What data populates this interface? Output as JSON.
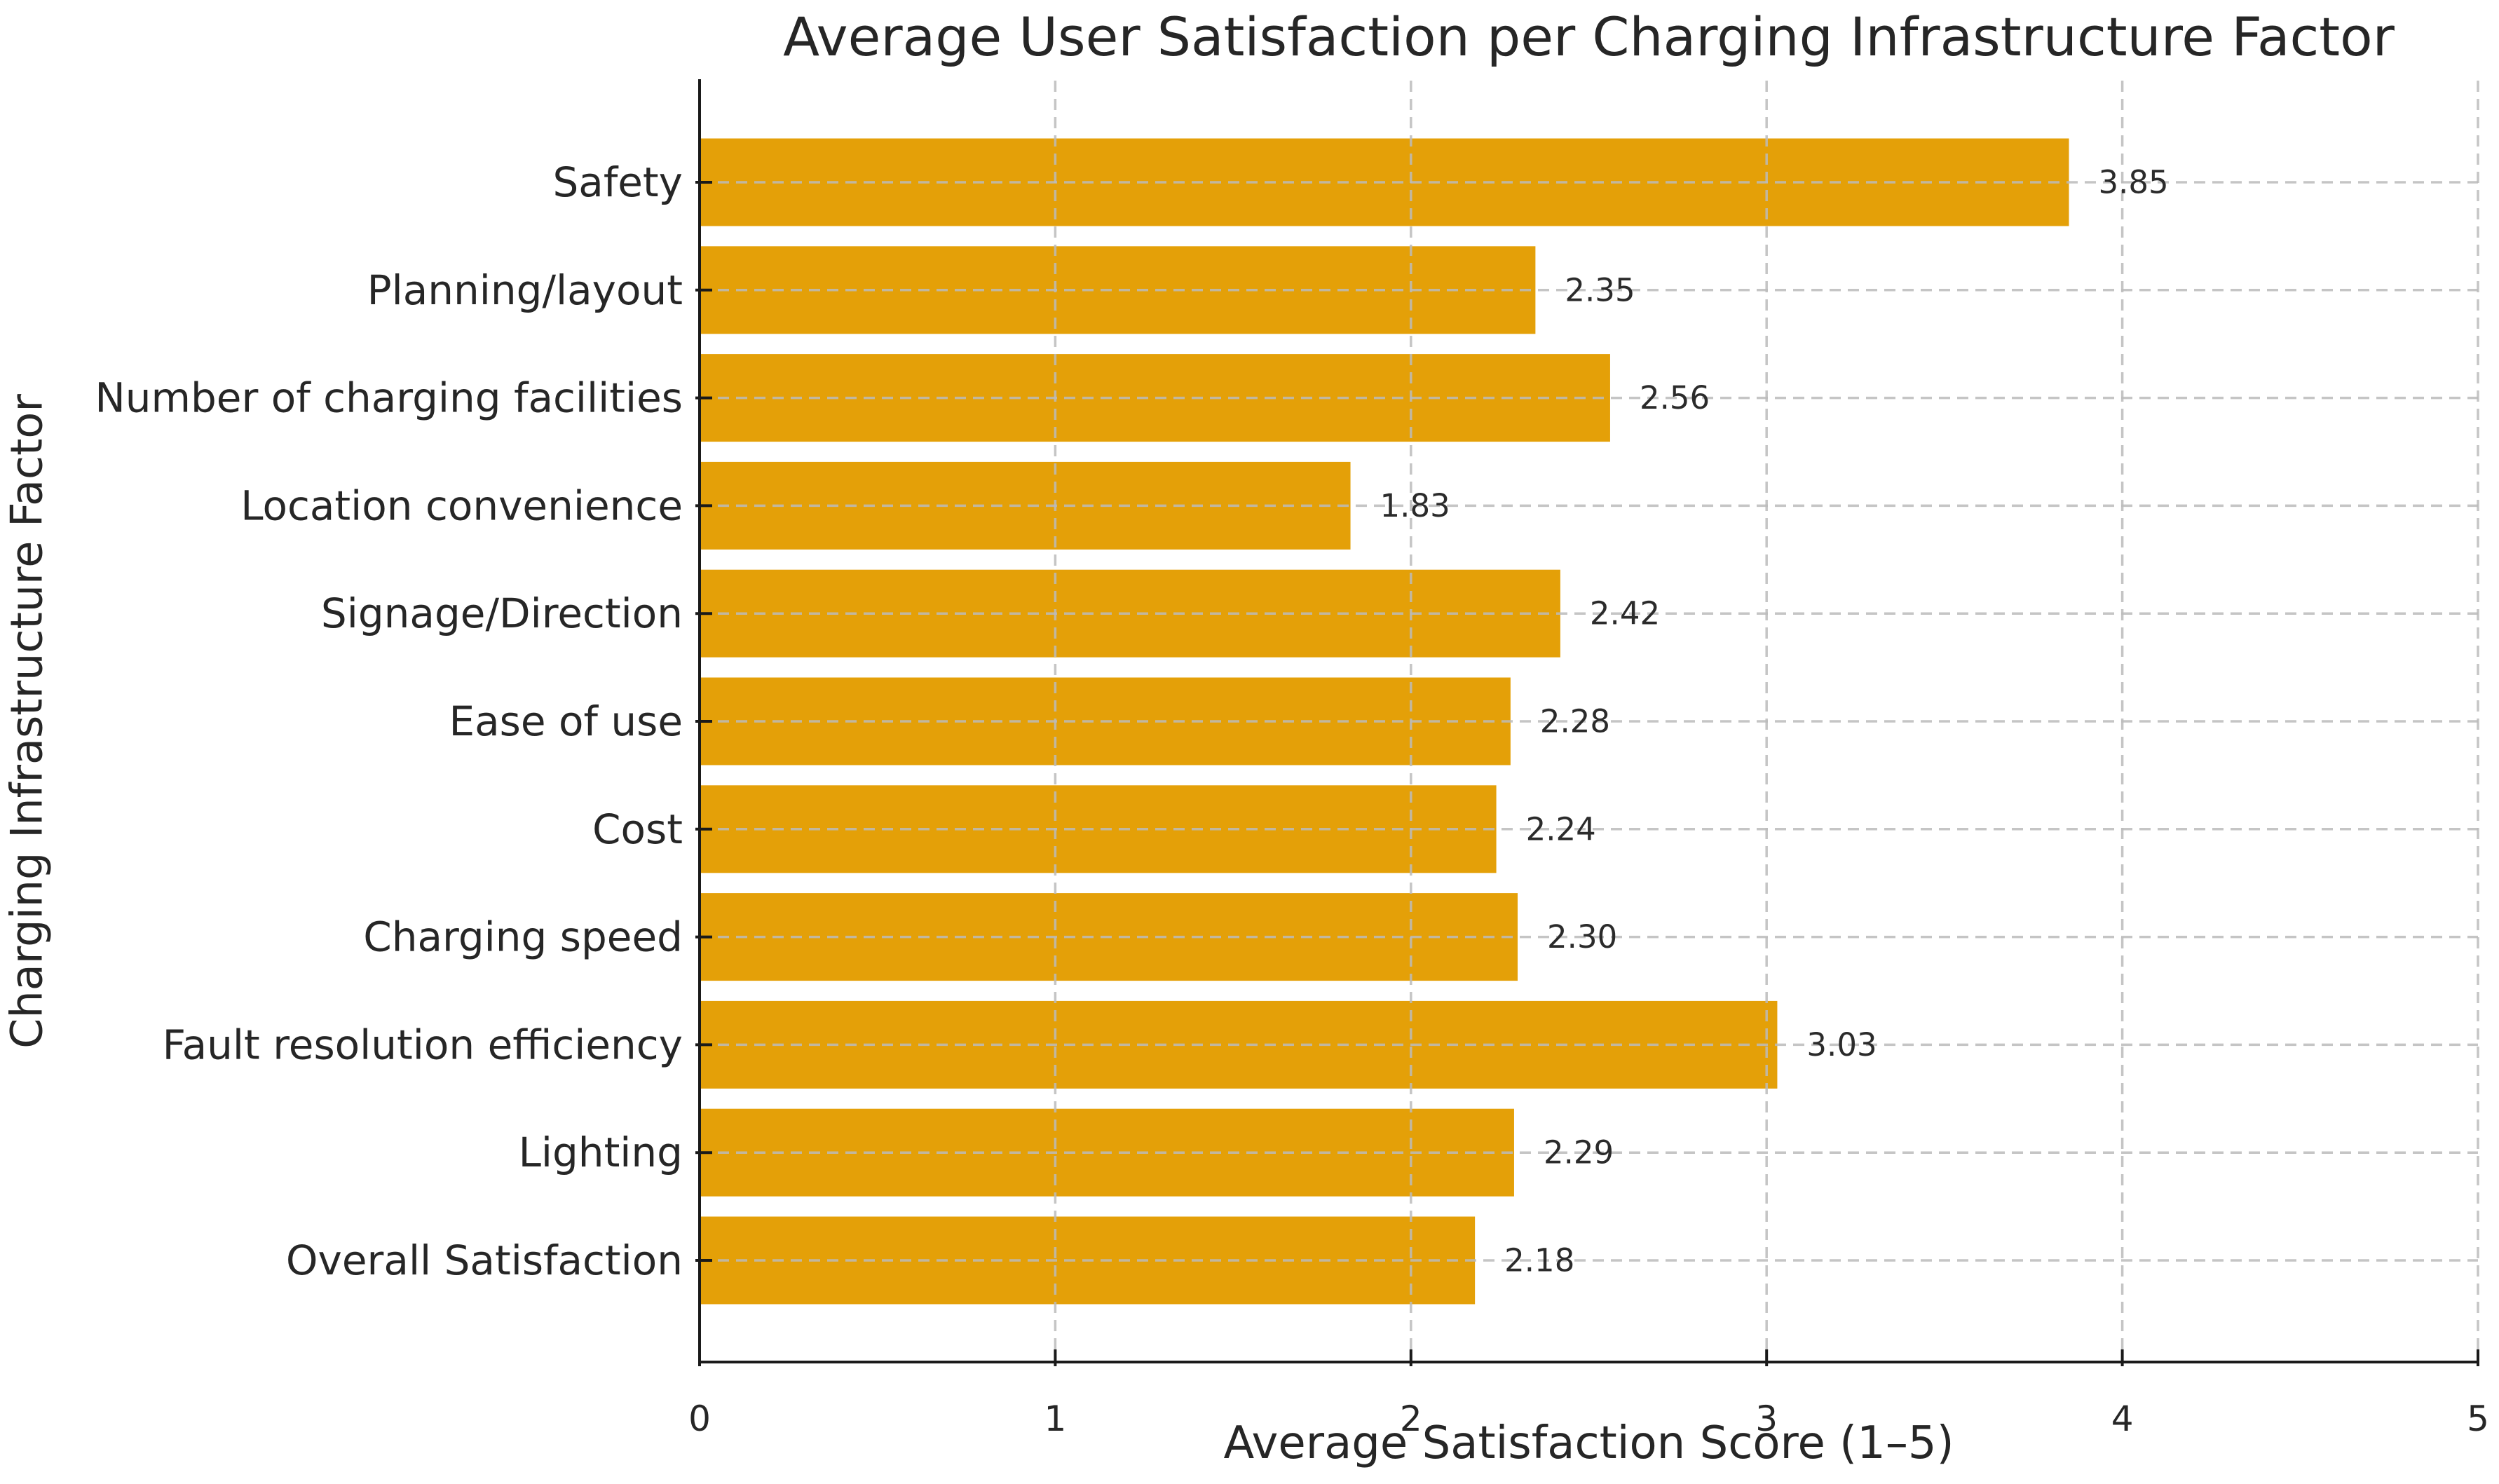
{
  "chart_data": {
    "type": "bar",
    "orientation": "horizontal",
    "title": "Average User Satisfaction per Charging Infrastructure Factor",
    "xlabel": "Average Satisfaction Score (1–5)",
    "ylabel": "Charging Infrastructure Factor",
    "categories": [
      "Safety",
      "Planning/layout",
      "Number of charging facilities",
      "Location convenience",
      "Signage/Direction",
      "Ease of use",
      "Cost",
      "Charging speed",
      "Fault resolution efficiency",
      "Lighting",
      "Overall Satisfaction"
    ],
    "values": [
      3.85,
      2.35,
      2.56,
      1.83,
      2.42,
      2.28,
      2.24,
      2.3,
      3.03,
      2.29,
      2.18
    ],
    "value_labels": [
      "3.85",
      "2.35",
      "2.56",
      "1.83",
      "2.42",
      "2.28",
      "2.24",
      "2.30",
      "3.03",
      "2.29",
      "2.18"
    ],
    "xlim": [
      0,
      5
    ],
    "xtick_labels": [
      "0",
      "1",
      "2",
      "3",
      "4",
      "5"
    ],
    "grid": "dashed",
    "legend": "none",
    "bar_color": "#E4A008",
    "grid_color": "#bbbbbb",
    "axis_color": "#1a1a1a",
    "text_color": "#262626",
    "background_color": "#ffffff"
  }
}
